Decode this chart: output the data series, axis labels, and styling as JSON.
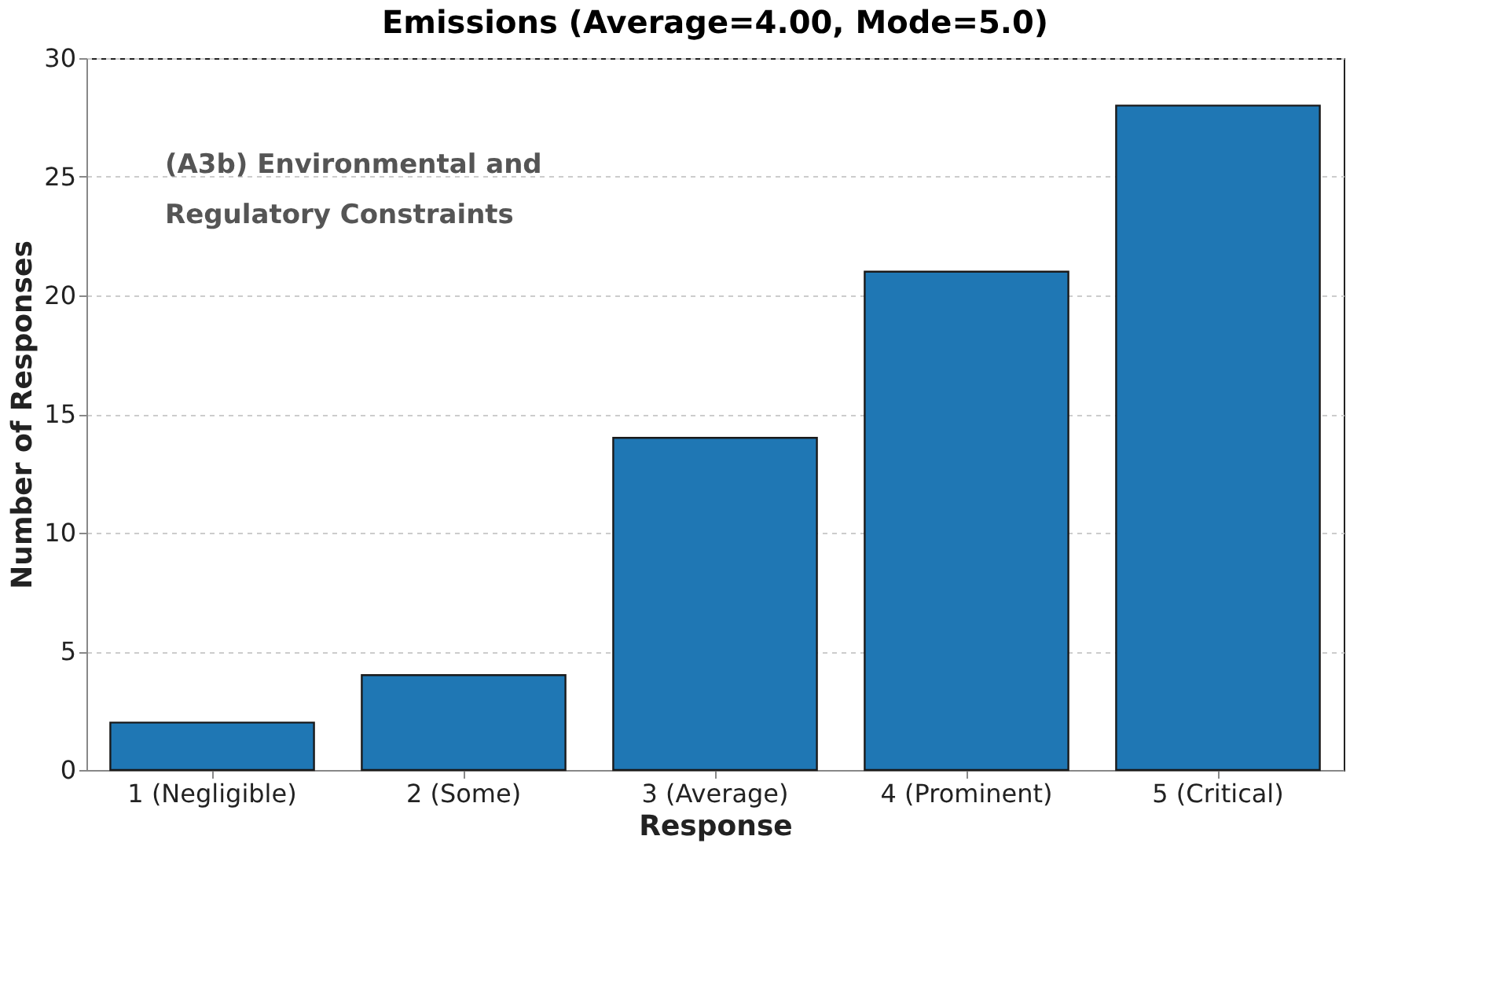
{
  "chart_data": {
    "type": "bar",
    "title": "Emissions (Average=4.00, Mode=5.0)",
    "xlabel": "Response",
    "ylabel": "Number of Responses",
    "categories": [
      "1 (Negligible)",
      "2 (Some)",
      "3 (Average)",
      "4 (Prominent)",
      "5 (Critical)"
    ],
    "values": [
      2,
      4,
      14,
      21,
      28
    ],
    "color": "#1f77b4",
    "ylim": [
      0,
      30
    ],
    "yticks": [
      0,
      5,
      10,
      15,
      20,
      25,
      30
    ],
    "grid": "y",
    "annotations": [
      "(A3b) Environmental and\nRegulatory Constraints"
    ]
  }
}
